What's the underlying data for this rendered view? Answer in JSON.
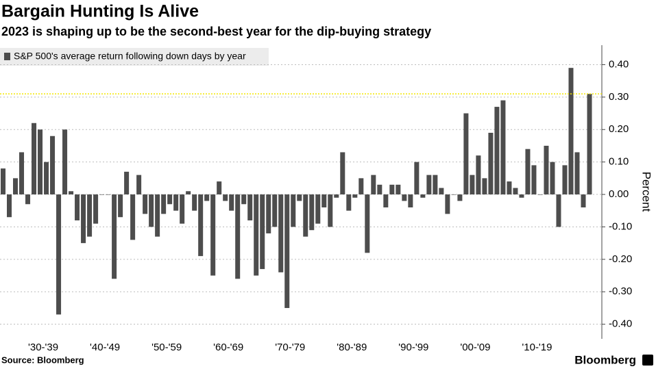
{
  "chart_data": {
    "type": "bar",
    "title": "Bargain Hunting Is Alive",
    "subtitle": "2023 is shaping up to be the second-best year for the dip-buying strategy",
    "series": [
      {
        "name": "S&P 500's average return following down days by year",
        "color": "#4d4d4d",
        "values": [
          0.08,
          -0.07,
          0.05,
          0.13,
          -0.03,
          0.22,
          0.2,
          0.1,
          0.18,
          -0.37,
          0.2,
          0.01,
          -0.08,
          -0.15,
          -0.13,
          -0.09,
          0.0,
          0.0,
          -0.26,
          -0.07,
          0.07,
          -0.14,
          0.06,
          -0.06,
          -0.1,
          -0.13,
          -0.06,
          -0.03,
          -0.05,
          -0.09,
          0.01,
          -0.05,
          -0.19,
          -0.02,
          -0.25,
          0.04,
          -0.02,
          -0.05,
          -0.26,
          -0.03,
          -0.08,
          -0.25,
          -0.23,
          -0.12,
          -0.1,
          -0.24,
          -0.35,
          -0.1,
          -0.02,
          -0.13,
          -0.11,
          -0.09,
          -0.04,
          -0.1,
          -0.01,
          0.13,
          -0.05,
          -0.01,
          0.05,
          -0.18,
          0.06,
          0.03,
          -0.04,
          0.03,
          0.03,
          -0.02,
          -0.04,
          0.1,
          -0.01,
          0.06,
          0.06,
          0.02,
          -0.06,
          0.0,
          -0.02,
          0.25,
          0.06,
          0.12,
          0.05,
          0.19,
          0.27,
          0.29,
          0.04,
          0.02,
          -0.01,
          0.14,
          0.09,
          0.0,
          0.15,
          0.1,
          -0.1,
          0.09,
          0.39,
          0.13,
          -0.04,
          0.31
        ]
      }
    ],
    "x": [
      1928,
      1929,
      1930,
      1931,
      1932,
      1933,
      1934,
      1935,
      1936,
      1937,
      1938,
      1939,
      1940,
      1941,
      1942,
      1943,
      1944,
      1945,
      1946,
      1947,
      1948,
      1949,
      1950,
      1951,
      1952,
      1953,
      1954,
      1955,
      1956,
      1957,
      1958,
      1959,
      1960,
      1961,
      1962,
      1963,
      1964,
      1965,
      1966,
      1967,
      1968,
      1969,
      1970,
      1971,
      1972,
      1973,
      1974,
      1975,
      1976,
      1977,
      1978,
      1979,
      1980,
      1981,
      1982,
      1983,
      1984,
      1985,
      1986,
      1987,
      1988,
      1989,
      1990,
      1991,
      1992,
      1993,
      1994,
      1995,
      1996,
      1997,
      1998,
      1999,
      2000,
      2001,
      2002,
      2003,
      2004,
      2005,
      2006,
      2007,
      2008,
      2009,
      2010,
      2011,
      2012,
      2013,
      2014,
      2015,
      2016,
      2017,
      2018,
      2019,
      2020,
      2021,
      2022,
      2023
    ],
    "xlim": [
      1927.5,
      2025
    ],
    "xticks": [
      {
        "value": 1934.5,
        "label": "'30-'39"
      },
      {
        "value": 1944.5,
        "label": "'40-'49"
      },
      {
        "value": 1954.5,
        "label": "'50-'59"
      },
      {
        "value": 1964.5,
        "label": "'60-'69"
      },
      {
        "value": 1974.5,
        "label": "'70-'79"
      },
      {
        "value": 1984.5,
        "label": "'80-'89"
      },
      {
        "value": 1994.5,
        "label": "'90-'99"
      },
      {
        "value": 2004.5,
        "label": "'00-'09"
      },
      {
        "value": 2014.5,
        "label": "'10-'19"
      }
    ],
    "ylim": [
      -0.445,
      0.46
    ],
    "yticks": [
      {
        "value": -0.4,
        "label": "-0.40"
      },
      {
        "value": -0.3,
        "label": "-0.30"
      },
      {
        "value": -0.2,
        "label": "-0.20"
      },
      {
        "value": -0.1,
        "label": "-0.10"
      },
      {
        "value": 0,
        "label": "0.00"
      },
      {
        "value": 0.1,
        "label": "0.10"
      },
      {
        "value": 0.2,
        "label": "0.20"
      },
      {
        "value": 0.3,
        "label": "0.30"
      },
      {
        "value": 0.4,
        "label": "0.40"
      }
    ],
    "ylabel": "Percent",
    "reference_line": {
      "value": 0.31,
      "color": "#f2e600"
    },
    "grid": true,
    "legend": "top-left",
    "source": "Source: Bloomberg",
    "brand": "Bloomberg"
  }
}
